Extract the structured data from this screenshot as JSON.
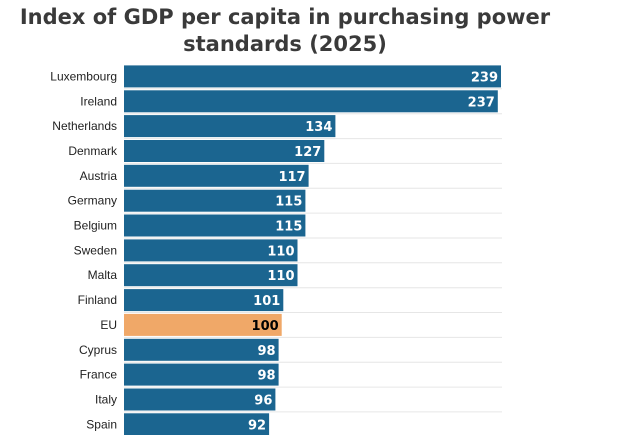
{
  "chart_data": {
    "type": "bar",
    "orientation": "horizontal",
    "title": "Index of GDP per capita in purchasing power standards (2025)",
    "categories": [
      "Luxembourg",
      "Ireland",
      "Netherlands",
      "Denmark",
      "Austria",
      "Germany",
      "Belgium",
      "Sweden",
      "Malta",
      "Finland",
      "EU",
      "Cyprus",
      "France",
      "Italy",
      "Spain"
    ],
    "values": [
      239,
      237,
      134,
      127,
      117,
      115,
      115,
      110,
      110,
      101,
      100,
      98,
      98,
      96,
      92
    ],
    "highlight": "EU",
    "xlim": [
      0,
      239
    ],
    "grid": true,
    "colors": {
      "bar": "#1b6590",
      "highlight": "#f0a868",
      "label_on_bar": "#ffffff",
      "label_on_highlight": "#000000"
    }
  }
}
